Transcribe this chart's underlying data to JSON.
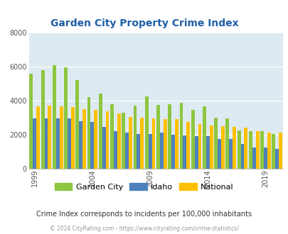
{
  "title": "Garden City Property Crime Index",
  "years": [
    1999,
    2000,
    2001,
    2002,
    2003,
    2004,
    2005,
    2006,
    2007,
    2008,
    2009,
    2010,
    2011,
    2012,
    2013,
    2014,
    2015,
    2016,
    2017,
    2018,
    2019,
    2020
  ],
  "garden_city": [
    5600,
    5800,
    6100,
    5950,
    5200,
    4200,
    4400,
    3800,
    3300,
    3700,
    4250,
    3750,
    3800,
    3850,
    3450,
    3650,
    3000,
    2950,
    2250,
    2200,
    2200,
    2050
  ],
  "idaho": [
    2950,
    2950,
    2950,
    2950,
    2800,
    2750,
    2450,
    2200,
    2100,
    2050,
    2050,
    2100,
    2000,
    1950,
    1900,
    1900,
    1750,
    1750,
    1450,
    1250,
    1250,
    1150
  ],
  "national": [
    3650,
    3700,
    3650,
    3600,
    3500,
    3450,
    3350,
    3250,
    3050,
    3000,
    2950,
    2900,
    2900,
    2750,
    2600,
    2550,
    2500,
    2450,
    2400,
    2200,
    2100,
    2100
  ],
  "garden_city_color": "#8dc63f",
  "idaho_color": "#4f81bd",
  "national_color": "#ffc000",
  "bg_color": "#deeaf1",
  "ylim": [
    0,
    8000
  ],
  "yticks": [
    0,
    2000,
    4000,
    6000,
    8000
  ],
  "xtick_years": [
    1999,
    2004,
    2009,
    2014,
    2019
  ],
  "subtitle": "Crime Index corresponds to incidents per 100,000 inhabitants",
  "footer": "© 2024 CityRating.com - https://www.cityrating.com/crime-statistics/",
  "title_color": "#1f5fa6",
  "subtitle_color": "#333333",
  "footer_color": "#999999",
  "grid_color": "#cccccc"
}
